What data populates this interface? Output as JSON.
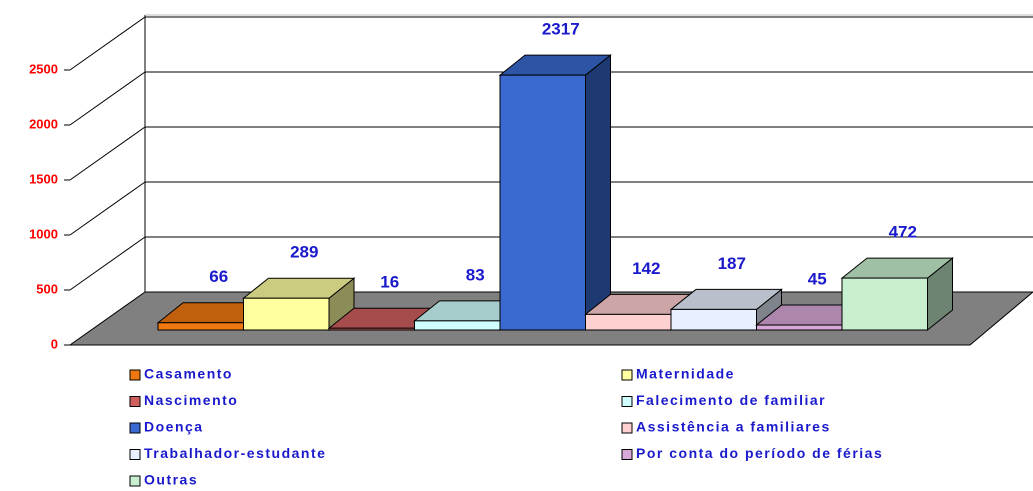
{
  "chart_data": {
    "type": "bar3d",
    "categories": [
      "Casamento",
      "Maternidade",
      "Nascimento",
      "Falecimento de familiar",
      "Doença",
      "Assistência a familiares",
      "Trabalhador-estudante",
      "Por conta do período de férias",
      "Outras"
    ],
    "values": [
      66,
      289,
      16,
      83,
      2317,
      142,
      187,
      45,
      472
    ],
    "colors": [
      "#f07810",
      "#ffffa0",
      "#d06060",
      "#d0ffff",
      "#3a6ad0",
      "#ffd0d0",
      "#e8f0ff",
      "#d8a8d8",
      "#c8f0d0"
    ],
    "ylim": [
      0,
      2500
    ],
    "yticks": [
      0,
      500,
      1000,
      1500,
      2000,
      2500
    ],
    "grid": true
  }
}
